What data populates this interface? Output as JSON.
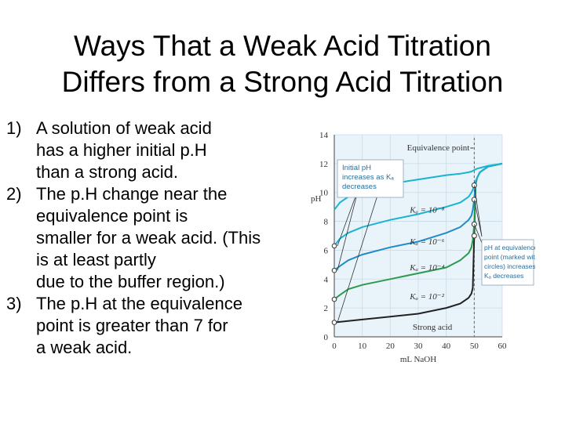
{
  "slide": {
    "title_line1": "Ways That a Weak Acid Titration",
    "title_line2": "Differs from a Strong Acid Titration",
    "points": [
      {
        "num": "1)",
        "lines": [
          "A solution of weak acid",
          "has a higher initial p.H",
          "than a strong acid."
        ]
      },
      {
        "num": "2)",
        "lines": [
          "The p.H change near the",
          "equivalence point is",
          "smaller for a weak acid. (This",
          "is at least partly",
          "due to the buffer region.)"
        ]
      },
      {
        "num": "3)",
        "lines": [
          "The p.H at the equivalence",
          "point is greater than 7 for",
          "a weak acid."
        ]
      }
    ]
  },
  "chart_data": {
    "type": "line",
    "title": "",
    "xlabel": "mL NaOH",
    "ylabel": "pH",
    "xlim": [
      0,
      60
    ],
    "ylim": [
      0,
      14
    ],
    "xticks": [
      0,
      10,
      20,
      30,
      40,
      50,
      60
    ],
    "yticks": [
      0,
      2,
      4,
      6,
      8,
      10,
      12,
      14
    ],
    "grid": true,
    "equivalence_x": 50,
    "series": [
      {
        "name": "Strong acid",
        "color": "#222222",
        "x": [
          0,
          10,
          20,
          30,
          40,
          45,
          48,
          49,
          49.5,
          50,
          50.5,
          51,
          52,
          55,
          60
        ],
        "y": [
          1.0,
          1.2,
          1.4,
          1.6,
          2.0,
          2.3,
          2.7,
          3.0,
          3.4,
          7.0,
          10.6,
          11.0,
          11.4,
          11.8,
          12.0
        ]
      },
      {
        "name": "Ka = 10⁻²",
        "color": "#2e9a4e",
        "x": [
          0,
          2,
          5,
          10,
          20,
          30,
          40,
          45,
          48,
          49,
          49.5,
          50,
          50.5,
          51,
          52,
          55,
          60
        ],
        "y": [
          2.6,
          2.9,
          3.3,
          3.6,
          4.0,
          4.4,
          4.8,
          5.3,
          5.8,
          6.2,
          6.7,
          7.8,
          10.6,
          11.0,
          11.4,
          11.8,
          12.0
        ]
      },
      {
        "name": "Ka = 10⁻⁴",
        "color": "#1f8cc9",
        "x": [
          0,
          2,
          5,
          10,
          20,
          30,
          40,
          45,
          48,
          49,
          49.5,
          50,
          50.5,
          51,
          52,
          55,
          60
        ],
        "y": [
          4.6,
          4.9,
          5.3,
          5.7,
          6.2,
          6.6,
          7.2,
          7.6,
          8.1,
          8.4,
          8.8,
          9.5,
          10.6,
          11.0,
          11.4,
          11.8,
          12.0
        ]
      },
      {
        "name": "Ka = 10⁻⁶",
        "color": "#1ab3d1",
        "x": [
          0,
          2,
          5,
          10,
          20,
          30,
          40,
          45,
          48,
          49,
          49.5,
          50,
          50.5,
          51,
          52,
          55,
          60
        ],
        "y": [
          6.3,
          6.8,
          7.2,
          7.6,
          8.1,
          8.5,
          9.0,
          9.3,
          9.7,
          10.0,
          10.2,
          10.5,
          10.8,
          11.0,
          11.4,
          11.8,
          12.0
        ]
      },
      {
        "name": "Ka = 10⁻⁸",
        "color": "#1ab3d1",
        "x": [
          0,
          2,
          5,
          10,
          20,
          30,
          40,
          45,
          48,
          49,
          49.5,
          50,
          50.5,
          51,
          52,
          55,
          60
        ],
        "y": [
          8.8,
          9.3,
          9.7,
          10.1,
          10.6,
          10.9,
          11.2,
          11.3,
          11.4,
          11.45,
          11.5,
          11.55,
          11.6,
          11.65,
          11.7,
          11.85,
          12.0
        ]
      }
    ],
    "initial_points": [
      1.0,
      2.6,
      4.6,
      6.3
    ],
    "equivalence_points": [
      7.0,
      7.8,
      9.5,
      10.5
    ],
    "annotations": {
      "equivalence": "Equivalence point",
      "callout_left": [
        "Initial pH",
        "increases as Kₐ",
        "decreases"
      ],
      "callout_right": [
        "pH at equivalence",
        "point (marked with",
        "circles) increases as",
        "Kₐ decreases"
      ],
      "curve_labels": [
        "Kₐ = 10⁻⁸",
        "Kₐ = 10⁻⁶",
        "Kₐ = 10⁻⁴",
        "Kₐ = 10⁻²",
        "Strong acid"
      ]
    },
    "colors": {
      "panel_bg": "#e8f3fa",
      "grid": "#c9dbe8",
      "callout_bg": "#ffffff",
      "callout_border": "#8aa3b3"
    }
  }
}
